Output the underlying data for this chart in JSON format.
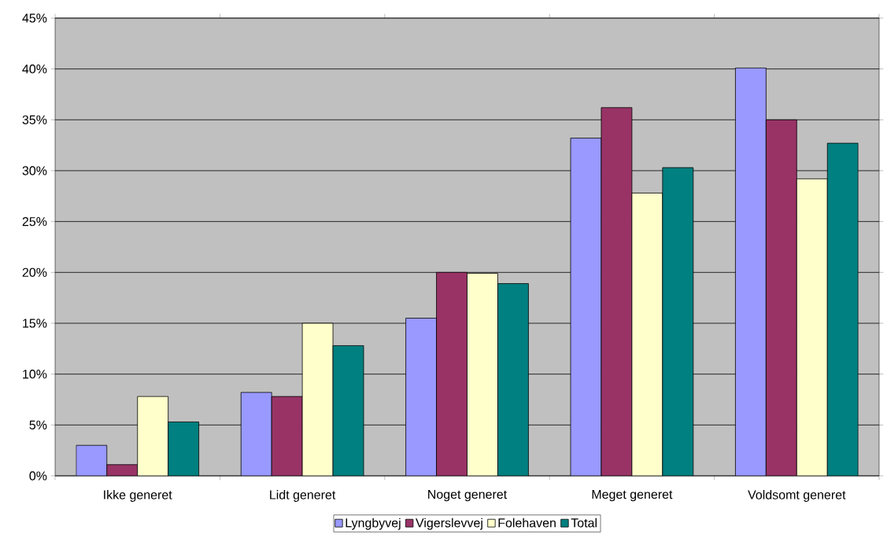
{
  "chart_data": {
    "type": "bar",
    "categories": [
      "Ikke generet",
      "Lidt generet",
      "Noget generet",
      "Meget generet",
      "Voldsomt generet"
    ],
    "series": [
      {
        "name": "Lyngbyvej",
        "color": "#9999ff",
        "values": [
          3.0,
          8.2,
          15.5,
          33.2,
          40.1
        ]
      },
      {
        "name": "Vigerslevvej",
        "color": "#993366",
        "values": [
          1.1,
          7.8,
          20.0,
          36.2,
          35.0
        ]
      },
      {
        "name": "Folehaven",
        "color": "#ffffcc",
        "values": [
          7.8,
          15.0,
          19.9,
          27.8,
          29.2
        ]
      },
      {
        "name": "Total",
        "color": "#008080",
        "values": [
          5.3,
          12.8,
          18.9,
          30.3,
          32.7
        ]
      }
    ],
    "ylim": [
      0,
      45
    ],
    "yticks": [
      {
        "value": 0,
        "label": "0%"
      },
      {
        "value": 5,
        "label": "5%"
      },
      {
        "value": 10,
        "label": "10%"
      },
      {
        "value": 15,
        "label": "15%"
      },
      {
        "value": 20,
        "label": "20%"
      },
      {
        "value": 25,
        "label": "25%"
      },
      {
        "value": 30,
        "label": "30%"
      },
      {
        "value": 35,
        "label": "35%"
      },
      {
        "value": 40,
        "label": "40%"
      },
      {
        "value": 45,
        "label": "45%"
      }
    ],
    "grid": "y",
    "legend": "bottom"
  }
}
